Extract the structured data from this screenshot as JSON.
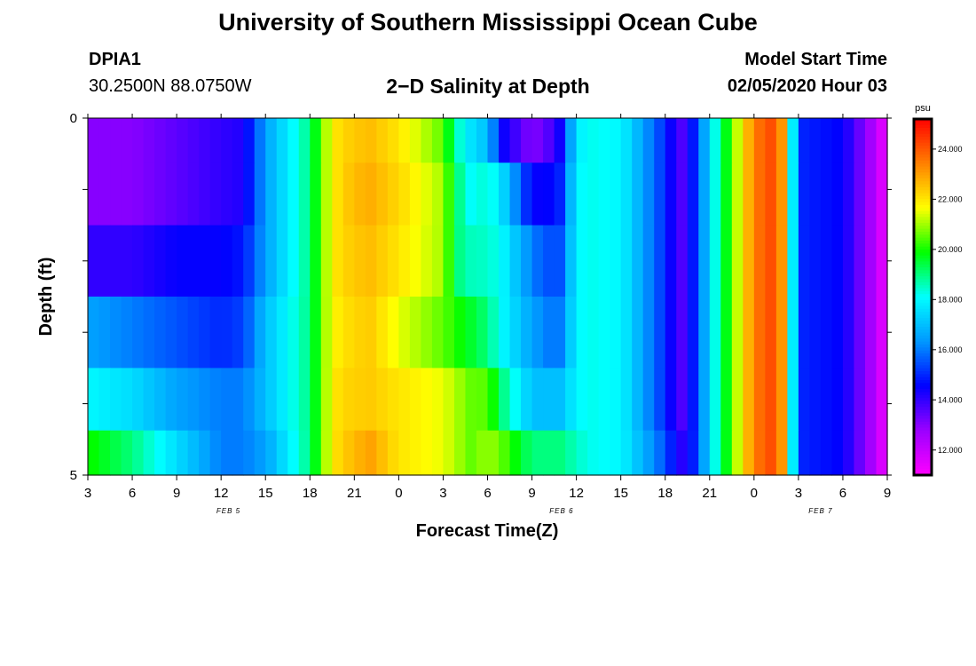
{
  "header": {
    "main_title": "University of Southern Mississippi Ocean Cube",
    "station_id": "DPIA1",
    "station_coords": "30.2500N 88.0750W",
    "plot_title": "2−D Salinity at Depth",
    "model_start_label": "Model Start Time",
    "model_start_value": "02/05/2020 Hour 03"
  },
  "footer": {
    "title": "University of Southern Mississippi Ocean Cube"
  },
  "chart_data": {
    "type": "heatmap",
    "title": "2−D Salinity at Depth",
    "xlabel": "Forecast Time(Z)",
    "ylabel": "Depth (ft)",
    "x_tick_labels": [
      "3",
      "6",
      "9",
      "12",
      "15",
      "18",
      "21",
      "0",
      "3",
      "6",
      "9",
      "12",
      "15",
      "18",
      "21",
      "0",
      "3",
      "6",
      "9"
    ],
    "x_hours_from_start": [
      0,
      3,
      6,
      9,
      12,
      15,
      18,
      21,
      24,
      27,
      30,
      33,
      36,
      39,
      42,
      45,
      48,
      51,
      54
    ],
    "date_labels": [
      {
        "text": "FEB 5",
        "hour": 9.5
      },
      {
        "text": "FEB 6",
        "hour": 32
      },
      {
        "text": "FEB 7",
        "hour": 49.5
      }
    ],
    "y_tick_labels": [
      "0",
      "5"
    ],
    "ylim": [
      0,
      5
    ],
    "xlim_hours": [
      0,
      54
    ],
    "colorbar": {
      "unit": "psu",
      "range": [
        11,
        25.2
      ],
      "tick_labels": [
        "24.000",
        "22.000",
        "20.000",
        "18.000",
        "16.000",
        "14.000",
        "12.000"
      ],
      "tick_values": [
        24,
        22,
        20,
        18,
        16,
        14,
        12
      ],
      "colors": [
        "#ff00ff",
        "#9b00ff",
        "#0000ff",
        "#0098ff",
        "#00ffff",
        "#00ff00",
        "#ffff00",
        "#ff8000",
        "#ff0000"
      ]
    },
    "depth_layers_ft": [
      0.25,
      1.0,
      2.0,
      3.0,
      4.0,
      4.75
    ],
    "time_keys_hours": [
      0,
      3,
      6,
      9,
      10.5,
      12,
      15,
      16,
      17,
      18,
      19,
      21,
      24,
      25,
      26,
      27,
      28,
      30,
      31,
      32,
      33,
      34,
      36,
      39,
      40,
      41,
      42,
      43,
      44,
      45,
      46,
      46.6,
      47,
      48,
      51,
      53,
      54
    ],
    "salinity_psu": [
      [
        13.0,
        13.0,
        13.5,
        14.0,
        14.2,
        16.5,
        19.0,
        21.0,
        22.2,
        22.4,
        22.6,
        22.0,
        20.5,
        18.5,
        17.5,
        17.0,
        14.5,
        13.0,
        13.5,
        14.5,
        17.8,
        18.2,
        18.0,
        15.0,
        13.5,
        15.0,
        17.5,
        19.5,
        21.5,
        23.5,
        24.0,
        24.5,
        22.5,
        15.0,
        14.5,
        12.5,
        11.2
      ],
      [
        13.0,
        13.0,
        13.5,
        14.0,
        14.2,
        16.5,
        19.0,
        21.0,
        22.2,
        22.6,
        22.8,
        22.2,
        21.0,
        19.0,
        18.0,
        18.5,
        17.5,
        14.5,
        14.5,
        15.0,
        18.0,
        18.2,
        18.0,
        15.0,
        13.5,
        15.0,
        17.5,
        19.5,
        21.5,
        23.5,
        24.0,
        24.5,
        22.5,
        15.0,
        14.5,
        12.5,
        11.2
      ],
      [
        14.0,
        14.0,
        14.5,
        14.5,
        14.8,
        16.5,
        19.0,
        21.0,
        22.2,
        22.4,
        22.6,
        22.0,
        21.0,
        19.0,
        18.5,
        18.5,
        18.0,
        16.0,
        15.5,
        15.5,
        18.0,
        18.2,
        18.0,
        15.0,
        13.5,
        15.0,
        17.5,
        19.5,
        21.5,
        23.5,
        24.0,
        24.5,
        22.5,
        15.0,
        14.5,
        12.5,
        11.2
      ],
      [
        16.5,
        16.0,
        15.5,
        15.0,
        15.3,
        17.0,
        19.0,
        21.0,
        22.0,
        22.2,
        22.4,
        21.5,
        20.5,
        20.0,
        19.5,
        19.0,
        18.0,
        16.5,
        16.0,
        16.0,
        18.0,
        18.2,
        18.0,
        15.0,
        13.5,
        15.0,
        17.5,
        19.5,
        21.5,
        23.5,
        24.0,
        24.5,
        22.5,
        15.0,
        14.5,
        12.5,
        11.2
      ],
      [
        18.0,
        17.5,
        16.5,
        16.0,
        16.0,
        17.0,
        19.0,
        21.0,
        22.2,
        22.3,
        22.4,
        22.0,
        21.5,
        21.0,
        20.5,
        20.5,
        19.0,
        17.0,
        17.0,
        17.0,
        18.0,
        18.2,
        18.0,
        15.0,
        13.5,
        15.0,
        17.5,
        19.5,
        21.5,
        23.5,
        24.0,
        24.5,
        22.5,
        15.0,
        14.5,
        12.5,
        11.2
      ],
      [
        20.0,
        19.0,
        17.5,
        16.0,
        16.0,
        16.5,
        19.0,
        21.0,
        22.3,
        22.6,
        23.0,
        22.0,
        21.5,
        21.0,
        20.5,
        21.0,
        20.5,
        19.0,
        19.0,
        19.0,
        18.5,
        18.2,
        18.0,
        15.5,
        14.0,
        15.0,
        17.5,
        19.5,
        21.5,
        23.5,
        24.0,
        24.5,
        22.5,
        15.0,
        14.5,
        12.5,
        11.2
      ]
    ]
  }
}
